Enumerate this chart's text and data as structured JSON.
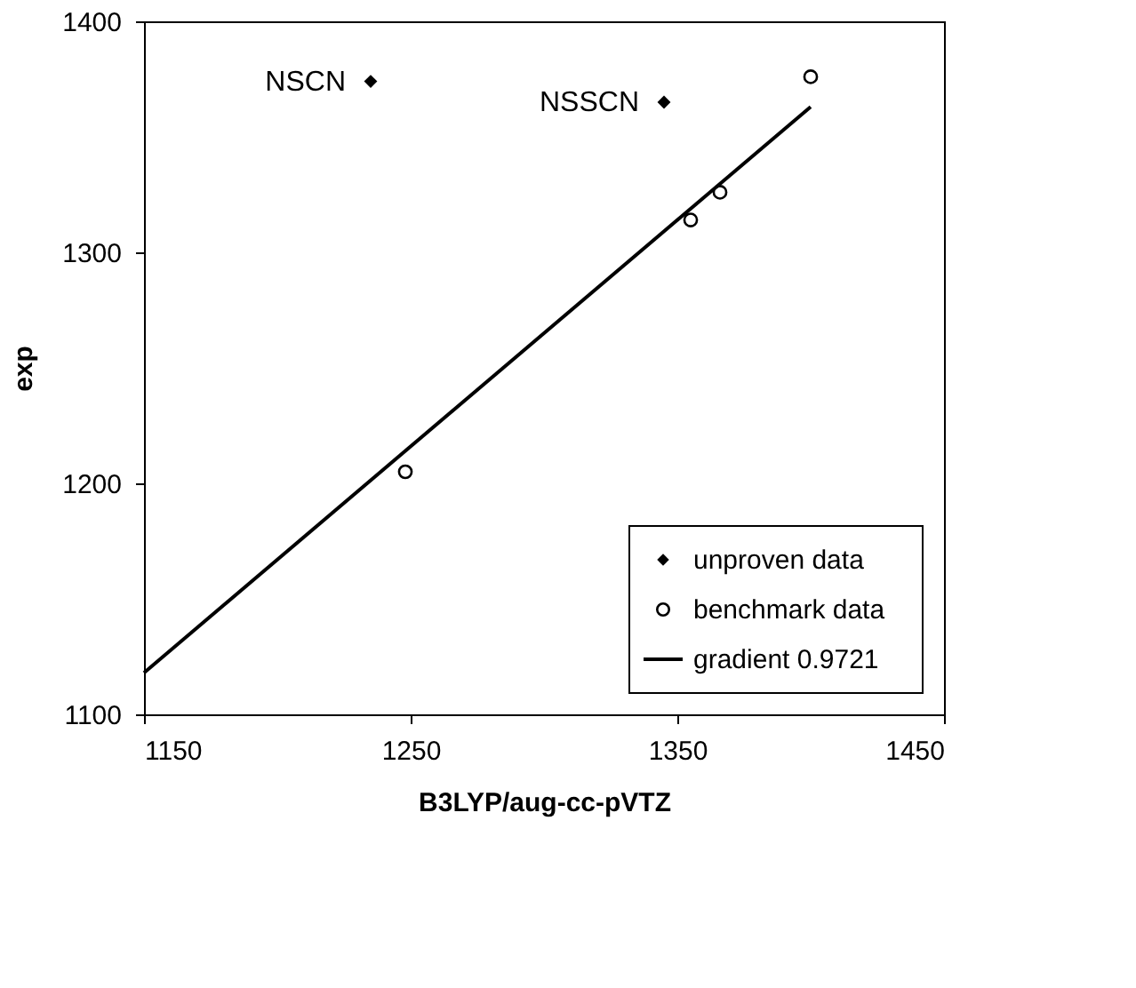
{
  "chart_data": {
    "type": "scatter",
    "xlabel": "B3LYP/aug-cc-pVTZ",
    "ylabel": "exp",
    "xlim": [
      1150,
      1450
    ],
    "xticks": [
      1150,
      1250,
      1350,
      1450
    ],
    "ylim": [
      1100,
      1400
    ],
    "yticks": [
      1100,
      1200,
      1300,
      1400
    ],
    "grid": false,
    "legend": "bottom right",
    "series": [
      {
        "name": "unproven data",
        "marker": "diamond",
        "color": "#000000",
        "x": [
          1235,
          1345
        ],
        "values": [
          1374,
          1365
        ]
      },
      {
        "name": "benchmark data",
        "marker": "circle",
        "color": "#000000",
        "x": [
          1248,
          1355,
          1366,
          1400
        ],
        "values": [
          1205,
          1314,
          1326,
          1376
        ]
      },
      {
        "name": "gradient 0.9721",
        "type": "line",
        "marker": "none",
        "line_style": "solid",
        "color": "#000000",
        "x": [
          1150,
          1400
        ],
        "values": [
          1118,
          1363
        ]
      }
    ],
    "annotations": [
      {
        "text": "NSCN",
        "x": 1235,
        "y": 1374
      },
      {
        "text": "NSSCN",
        "x": 1345,
        "y": 1365
      }
    ]
  }
}
